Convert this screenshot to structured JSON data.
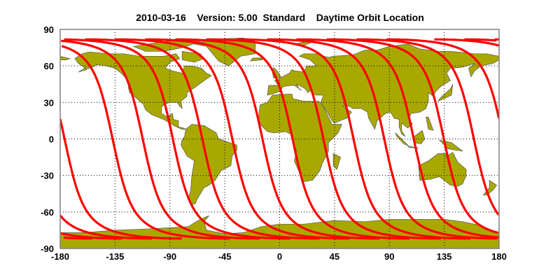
{
  "title": "2010-03-16    Version: 5.00  Standard    Daytime Orbit Location",
  "chart_data": {
    "type": "map",
    "projection": "equirectangular",
    "xlim": [
      -180,
      180
    ],
    "ylim": [
      -90,
      90
    ],
    "xticks": [
      "-180",
      "-135",
      "-90",
      "-45",
      "0",
      "45",
      "90",
      "135",
      "180"
    ],
    "yticks": [
      "90",
      "60",
      "30",
      "0",
      "-30",
      "-60",
      "-90"
    ],
    "grid": true,
    "series": [
      {
        "type": "orbit-tracks",
        "equator_crossing_longitudes": [
          -176.4,
          -137.0,
          -112.3,
          -87.6,
          -63.4,
          -38.8,
          -14.1,
          10.6,
          35.9,
          60.6,
          85.8,
          110.0,
          134.7,
          159.3
        ],
        "max_latitude": 82
      }
    ],
    "colors": {
      "land": "#a8a800",
      "coast": "#555555",
      "track": "#ff0000",
      "frame": "#808080"
    }
  }
}
